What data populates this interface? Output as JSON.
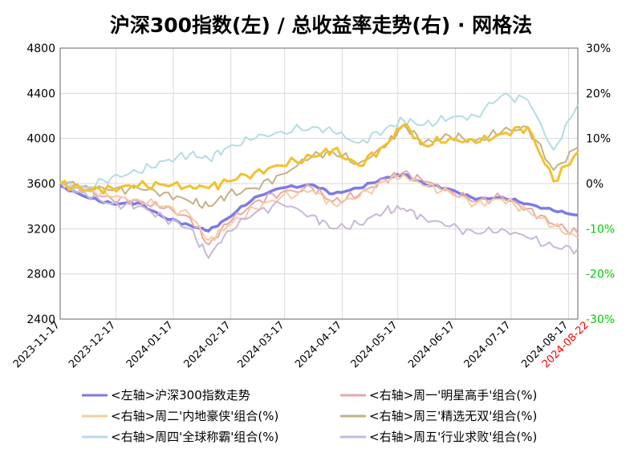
{
  "chart_data": {
    "type": "line",
    "title": "沪深300指数(左) / 总收益率走势(右) · 网格法",
    "x_ticks": [
      "2023-11-17",
      "2023-12-17",
      "2024-01-17",
      "2024-02-17",
      "2024-03-17",
      "2024-04-17",
      "2024-05-17",
      "2024-06-17",
      "2024-07-17",
      "2024-08-17"
    ],
    "x_end_label": "2024-08-22",
    "x_range": [
      "2023-11-17",
      "2024-08-22"
    ],
    "y_left": {
      "ticks": [
        "2400",
        "2800",
        "3200",
        "3600",
        "4000",
        "4400",
        "4800"
      ],
      "range": [
        2400,
        4800
      ]
    },
    "y_right": {
      "ticks": [
        "-30%",
        "-20%",
        "-10%",
        "0%",
        "10%",
        "20%",
        "30%"
      ],
      "range": [
        -30,
        30
      ],
      "unit": "%"
    },
    "grid": true,
    "legend_position": "bottom",
    "series": [
      {
        "name": "<左轴>沪深300指数走势",
        "axis": "left",
        "color": "#7b7be8",
        "width": 3.5,
        "points": [
          [
            "2023-11-17",
            3580
          ],
          [
            "2023-12-01",
            3480
          ],
          [
            "2023-12-15",
            3420
          ],
          [
            "2023-12-29",
            3430
          ],
          [
            "2024-01-12",
            3300
          ],
          [
            "2024-01-26",
            3230
          ],
          [
            "2024-02-05",
            3180
          ],
          [
            "2024-02-15",
            3290
          ],
          [
            "2024-03-01",
            3480
          ],
          [
            "2024-03-15",
            3560
          ],
          [
            "2024-04-01",
            3590
          ],
          [
            "2024-04-12",
            3510
          ],
          [
            "2024-04-26",
            3560
          ],
          [
            "2024-05-10",
            3650
          ],
          [
            "2024-05-20",
            3680
          ],
          [
            "2024-05-31",
            3600
          ],
          [
            "2024-06-14",
            3550
          ],
          [
            "2024-06-28",
            3460
          ],
          [
            "2024-07-12",
            3480
          ],
          [
            "2024-07-26",
            3420
          ],
          [
            "2024-08-09",
            3360
          ],
          [
            "2024-08-22",
            3320
          ]
        ]
      },
      {
        "name": "<右轴>周一'明星高手'组合(%)",
        "axis": "right",
        "color": "#e8a8a8",
        "width": 2,
        "points": [
          [
            "2023-11-17",
            0.3
          ],
          [
            "2023-12-01",
            -1.5
          ],
          [
            "2023-12-15",
            -3.5
          ],
          [
            "2023-12-29",
            -3.8
          ],
          [
            "2024-01-12",
            -5.5
          ],
          [
            "2024-01-26",
            -7.5
          ],
          [
            "2024-02-05",
            -13.5
          ],
          [
            "2024-02-15",
            -9.0
          ],
          [
            "2024-03-01",
            -4.0
          ],
          [
            "2024-03-15",
            -2.0
          ],
          [
            "2024-04-01",
            -1.0
          ],
          [
            "2024-04-12",
            -4.0
          ],
          [
            "2024-04-26",
            -2.5
          ],
          [
            "2024-05-10",
            1.0
          ],
          [
            "2024-05-20",
            2.5
          ],
          [
            "2024-05-31",
            0.5
          ],
          [
            "2024-06-14",
            -1.5
          ],
          [
            "2024-06-28",
            -4.0
          ],
          [
            "2024-07-12",
            -3.0
          ],
          [
            "2024-07-26",
            -5.5
          ],
          [
            "2024-08-09",
            -9.0
          ],
          [
            "2024-08-22",
            -11.0
          ]
        ]
      },
      {
        "name": "<右轴>周二'内地豪侠'组合(%)",
        "axis": "right",
        "color": "#f7cc9e",
        "width": 2,
        "points": [
          [
            "2023-11-17",
            0.5
          ],
          [
            "2023-12-01",
            -1.0
          ],
          [
            "2023-12-15",
            -3.0
          ],
          [
            "2023-12-29",
            -3.5
          ],
          [
            "2024-01-12",
            -5.0
          ],
          [
            "2024-01-26",
            -7.0
          ],
          [
            "2024-02-05",
            -12.5
          ],
          [
            "2024-02-15",
            -9.5
          ],
          [
            "2024-03-01",
            -5.5
          ],
          [
            "2024-03-15",
            -3.0
          ],
          [
            "2024-04-01",
            -1.5
          ],
          [
            "2024-04-12",
            -4.5
          ],
          [
            "2024-04-26",
            -3.0
          ],
          [
            "2024-05-10",
            0.5
          ],
          [
            "2024-05-20",
            2.0
          ],
          [
            "2024-05-31",
            -0.5
          ],
          [
            "2024-06-14",
            -2.0
          ],
          [
            "2024-06-28",
            -4.5
          ],
          [
            "2024-07-12",
            -3.5
          ],
          [
            "2024-07-26",
            -6.0
          ],
          [
            "2024-08-09",
            -9.5
          ],
          [
            "2024-08-22",
            -12.0
          ]
        ]
      },
      {
        "name": "<右轴>周三'精选无双'组合(%)",
        "axis": "right",
        "color": "#c4b088",
        "width": 2,
        "points": [
          [
            "2023-11-17",
            0.2
          ],
          [
            "2023-12-01",
            -0.5
          ],
          [
            "2023-12-15",
            -1.5
          ],
          [
            "2023-12-29",
            -1.0
          ],
          [
            "2024-01-12",
            -2.0
          ],
          [
            "2024-01-26",
            -4.0
          ],
          [
            "2024-02-05",
            -5.0
          ],
          [
            "2024-02-15",
            -2.5
          ],
          [
            "2024-03-01",
            -1.0
          ],
          [
            "2024-03-15",
            2.0
          ],
          [
            "2024-04-01",
            6.0
          ],
          [
            "2024-04-12",
            7.0
          ],
          [
            "2024-04-26",
            4.5
          ],
          [
            "2024-05-10",
            8.0
          ],
          [
            "2024-05-20",
            13.0
          ],
          [
            "2024-05-31",
            9.0
          ],
          [
            "2024-06-14",
            10.5
          ],
          [
            "2024-06-28",
            9.5
          ],
          [
            "2024-07-12",
            11.5
          ],
          [
            "2024-07-26",
            12.5
          ],
          [
            "2024-08-09",
            3.0
          ],
          [
            "2024-08-22",
            8.0
          ]
        ]
      },
      {
        "name": "<右轴>周四'全球称霸'组合(%)",
        "axis": "right",
        "color": "#b4dce4",
        "width": 2,
        "points": [
          [
            "2023-11-17",
            0
          ],
          [
            "2023-12-01",
            -1.0
          ],
          [
            "2023-12-15",
            1.5
          ],
          [
            "2023-12-29",
            2.5
          ],
          [
            "2024-01-12",
            5.0
          ],
          [
            "2024-01-26",
            6.5
          ],
          [
            "2024-02-05",
            5.5
          ],
          [
            "2024-02-15",
            8.0
          ],
          [
            "2024-03-01",
            10.0
          ],
          [
            "2024-03-15",
            11.5
          ],
          [
            "2024-04-01",
            12.5
          ],
          [
            "2024-04-12",
            11.5
          ],
          [
            "2024-04-26",
            9.0
          ],
          [
            "2024-05-10",
            12.0
          ],
          [
            "2024-05-20",
            14.0
          ],
          [
            "2024-05-31",
            13.0
          ],
          [
            "2024-06-14",
            14.5
          ],
          [
            "2024-06-28",
            15.0
          ],
          [
            "2024-07-12",
            19.5
          ],
          [
            "2024-07-26",
            18.5
          ],
          [
            "2024-08-09",
            7.5
          ],
          [
            "2024-08-22",
            17.5
          ]
        ]
      },
      {
        "name": "<右轴>周五'行业求败'组合(%)",
        "axis": "right",
        "color": "#c8b8d8",
        "width": 2,
        "points": [
          [
            "2023-11-17",
            0
          ],
          [
            "2023-12-01",
            -2.5
          ],
          [
            "2023-12-15",
            -4.5
          ],
          [
            "2023-12-29",
            -5.0
          ],
          [
            "2024-01-12",
            -7.5
          ],
          [
            "2024-01-26",
            -10.0
          ],
          [
            "2024-02-05",
            -16.5
          ],
          [
            "2024-02-15",
            -10.5
          ],
          [
            "2024-03-01",
            -6.5
          ],
          [
            "2024-03-15",
            -4.5
          ],
          [
            "2024-04-01",
            -7.0
          ],
          [
            "2024-04-12",
            -10.0
          ],
          [
            "2024-04-26",
            -9.0
          ],
          [
            "2024-05-10",
            -6.0
          ],
          [
            "2024-05-20",
            -5.5
          ],
          [
            "2024-05-31",
            -7.5
          ],
          [
            "2024-06-14",
            -9.5
          ],
          [
            "2024-06-28",
            -11.0
          ],
          [
            "2024-07-12",
            -10.0
          ],
          [
            "2024-07-26",
            -12.0
          ],
          [
            "2024-08-09",
            -14.0
          ],
          [
            "2024-08-22",
            -14.5
          ]
        ]
      },
      {
        "name": "",
        "axis": "right",
        "color": "#f2c12e",
        "width": 3,
        "points": [
          [
            "2023-11-17",
            0
          ],
          [
            "2023-12-01",
            -1.5
          ],
          [
            "2023-12-15",
            -1.0
          ],
          [
            "2023-12-29",
            -0.5
          ],
          [
            "2024-01-12",
            -0.3
          ],
          [
            "2024-01-26",
            -0.5
          ],
          [
            "2024-02-05",
            -1.0
          ],
          [
            "2024-02-15",
            0.5
          ],
          [
            "2024-03-01",
            2.5
          ],
          [
            "2024-03-15",
            4.0
          ],
          [
            "2024-04-01",
            6.0
          ],
          [
            "2024-04-12",
            7.5
          ],
          [
            "2024-04-26",
            4.0
          ],
          [
            "2024-05-10",
            8.5
          ],
          [
            "2024-05-20",
            13.0
          ],
          [
            "2024-05-31",
            8.5
          ],
          [
            "2024-06-14",
            10.0
          ],
          [
            "2024-06-28",
            9.0
          ],
          [
            "2024-07-12",
            11.0
          ],
          [
            "2024-07-26",
            12.5
          ],
          [
            "2024-08-09",
            0.5
          ],
          [
            "2024-08-22",
            7.0
          ]
        ]
      }
    ]
  }
}
